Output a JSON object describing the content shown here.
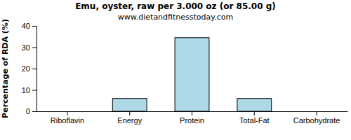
{
  "chart_data": {
    "type": "bar",
    "title": "Emu, oyster, raw per 3.000 oz (or 85.00 g)",
    "subtitle": "www.dietandfitnesstoday.com",
    "ylabel": "Percentage of RDA (%)",
    "categories": [
      "Riboflavin",
      "Energy",
      "Protein",
      "Total-Fat",
      "Carbohydrate"
    ],
    "values": [
      0,
      6,
      34.5,
      6,
      0
    ],
    "color": "#add8e6",
    "ylim": [
      0,
      40
    ],
    "yticks": [
      0,
      10,
      20,
      30,
      40
    ]
  }
}
